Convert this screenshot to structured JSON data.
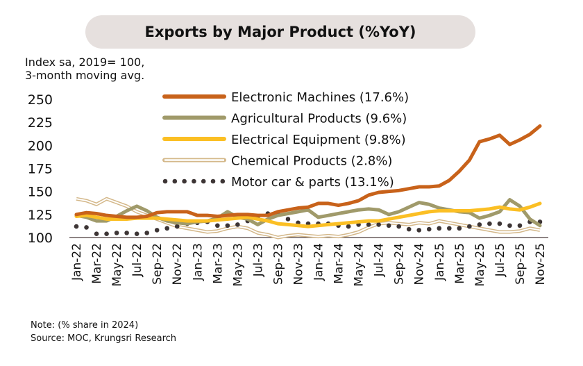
{
  "chart_data": {
    "type": "line",
    "title": "Exports by Major Product (%YoY)",
    "ylabel_lines": [
      "Index sa, 2019= 100,",
      "3-month moving avg."
    ],
    "ylim": [
      100,
      250
    ],
    "yticks": [
      100,
      125,
      150,
      175,
      200,
      225,
      250
    ],
    "grid": false,
    "legend_placement": "top-center",
    "x": [
      "Jan-22",
      "Feb-22",
      "Mar-22",
      "Apr-22",
      "May-22",
      "Jun-22",
      "Jul-22",
      "Aug-22",
      "Sep-22",
      "Oct-22",
      "Nov-22",
      "Dec-22",
      "Jan-23",
      "Feb-23",
      "Mar-23",
      "Apr-23",
      "May-23",
      "Jun-23",
      "Jul-23",
      "Aug-23",
      "Sep-23",
      "Oct-23",
      "Nov-23",
      "Dec-23",
      "Jan-24",
      "Feb-24",
      "Mar-24",
      "Apr-24",
      "May-24",
      "Jun-24",
      "Jul-24",
      "Aug-24",
      "Sep-24",
      "Oct-24",
      "Nov-24",
      "Dec-24",
      "Jan-25",
      "Feb-25",
      "Mar-25",
      "Apr-25",
      "May-25",
      "Jun-25",
      "Jul-25",
      "Aug-25",
      "Sep-25",
      "Oct-25",
      "Nov-25"
    ],
    "xtick_labels": [
      "Jan-22",
      "Mar-22",
      "May-22",
      "Jul-22",
      "Sep-22",
      "Nov-22",
      "Jan-23",
      "Mar-23",
      "May-23",
      "Jul-23",
      "Sep-23",
      "Nov-23",
      "Jan-24",
      "Mar-24",
      "May-24",
      "Jul-24",
      "Sep-24",
      "Nov-24",
      "Jan-25",
      "Mar-25",
      "May-25",
      "Jul-25",
      "Sep-25",
      "Nov-25"
    ],
    "series": [
      {
        "name": "Electronic Machines (17.6%)",
        "color": "#c8621a",
        "style": "solid",
        "values": [
          125,
          127,
          126,
          124,
          123,
          122,
          122,
          123,
          127,
          128,
          128,
          128,
          124,
          124,
          123,
          124,
          125,
          125,
          124,
          124,
          128,
          130,
          132,
          133,
          137,
          137,
          135,
          137,
          140,
          146,
          149,
          150,
          151,
          153,
          155,
          155,
          156,
          162,
          172,
          184,
          204,
          207,
          211,
          201,
          206,
          212,
          221
        ]
      },
      {
        "name": "Agricultural Products (9.6%)",
        "color": "#a09a6a",
        "style": "solid",
        "values": [
          124,
          122,
          118,
          118,
          123,
          129,
          134,
          129,
          122,
          118,
          116,
          115,
          117,
          118,
          121,
          128,
          122,
          120,
          114,
          120,
          124,
          126,
          128,
          130,
          122,
          124,
          126,
          128,
          130,
          131,
          130,
          125,
          128,
          133,
          138,
          136,
          132,
          130,
          128,
          127,
          121,
          124,
          128,
          141,
          134,
          120,
          113
        ]
      },
      {
        "name": "Electrical Equipment (9.8%)",
        "color": "#fbbf24",
        "style": "solid",
        "values": [
          123,
          124,
          122,
          120,
          120,
          120,
          121,
          121,
          121,
          120,
          119,
          118,
          118,
          118,
          119,
          120,
          121,
          122,
          120,
          118,
          115,
          114,
          113,
          112,
          113,
          114,
          115,
          116,
          117,
          118,
          118,
          120,
          122,
          124,
          126,
          128,
          129,
          129,
          129,
          129,
          130,
          131,
          133,
          131,
          130,
          133,
          137
        ]
      },
      {
        "name": "Chemical Products (2.8%)",
        "color": "#d4b88a",
        "style": "double",
        "values": [
          142,
          140,
          136,
          142,
          138,
          134,
          128,
          124,
          120,
          116,
          112,
          110,
          108,
          106,
          107,
          110,
          112,
          110,
          105,
          103,
          100,
          102,
          103,
          102,
          101,
          102,
          101,
          103,
          106,
          111,
          115,
          116,
          115,
          114,
          116,
          115,
          118,
          116,
          114,
          112,
          110,
          108,
          106,
          106,
          107,
          110,
          108
        ]
      },
      {
        "name": "Motor car & parts (13.1%)",
        "color": "#3d3535",
        "style": "dotted",
        "values": [
          112,
          111,
          104,
          104,
          105,
          105,
          104,
          105,
          108,
          110,
          112,
          115,
          116,
          117,
          113,
          113,
          114,
          118,
          123,
          126,
          126,
          120,
          116,
          115,
          115,
          115,
          113,
          112,
          114,
          114,
          114,
          113,
          112,
          109,
          108,
          109,
          110,
          110,
          110,
          112,
          114,
          115,
          115,
          113,
          113,
          117,
          117
        ]
      }
    ]
  },
  "footer": {
    "note": "Note: (% share in 2024)",
    "source": "Source: MOC, Krungsri Research"
  }
}
